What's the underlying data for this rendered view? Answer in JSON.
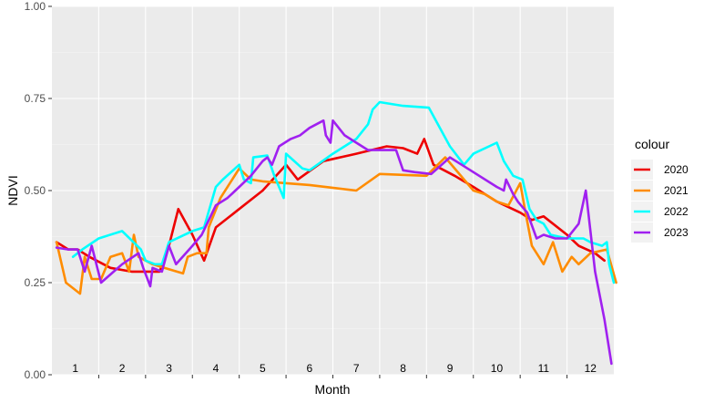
{
  "chart_data": {
    "type": "line",
    "xlabel": "Month",
    "ylabel": "NDVI",
    "ylim": [
      0,
      1
    ],
    "xlim": [
      0.5,
      12.5
    ],
    "y_ticks": [
      "0.00",
      "0.25",
      "0.50",
      "0.75",
      "1.00"
    ],
    "month_labels": [
      "1",
      "2",
      "3",
      "4",
      "5",
      "6",
      "7",
      "8",
      "9",
      "10",
      "11",
      "12"
    ],
    "grid": true,
    "legend": {
      "title": "colour",
      "placement": "right"
    },
    "series": [
      {
        "name": "2020",
        "color": "#ee0000",
        "points": [
          [
            0.6,
            0.36
          ],
          [
            0.85,
            0.34
          ],
          [
            1.05,
            0.34
          ],
          [
            1.3,
            0.32
          ],
          [
            1.75,
            0.29
          ],
          [
            2.2,
            0.28
          ],
          [
            2.6,
            0.28
          ],
          [
            2.8,
            0.28
          ],
          [
            3.0,
            0.35
          ],
          [
            3.2,
            0.45
          ],
          [
            3.5,
            0.38
          ],
          [
            3.75,
            0.31
          ],
          [
            4.0,
            0.4
          ],
          [
            4.5,
            0.45
          ],
          [
            5.0,
            0.5
          ],
          [
            5.5,
            0.57
          ],
          [
            5.75,
            0.53
          ],
          [
            6.3,
            0.58
          ],
          [
            7.0,
            0.6
          ],
          [
            7.65,
            0.62
          ],
          [
            8.0,
            0.615
          ],
          [
            8.3,
            0.6
          ],
          [
            8.45,
            0.64
          ],
          [
            8.65,
            0.57
          ],
          [
            9.1,
            0.54
          ],
          [
            9.5,
            0.51
          ],
          [
            10.0,
            0.47
          ],
          [
            10.5,
            0.44
          ],
          [
            10.75,
            0.42
          ],
          [
            11.0,
            0.43
          ],
          [
            11.5,
            0.38
          ],
          [
            11.75,
            0.35
          ],
          [
            12.1,
            0.33
          ],
          [
            12.3,
            0.31
          ]
        ]
      },
      {
        "name": "2021",
        "color": "#ff8c00",
        "points": [
          [
            0.6,
            0.36
          ],
          [
            0.8,
            0.25
          ],
          [
            1.1,
            0.22
          ],
          [
            1.2,
            0.32
          ],
          [
            1.35,
            0.26
          ],
          [
            1.55,
            0.26
          ],
          [
            1.75,
            0.32
          ],
          [
            2.0,
            0.33
          ],
          [
            2.15,
            0.28
          ],
          [
            2.25,
            0.38
          ],
          [
            2.35,
            0.32
          ],
          [
            2.65,
            0.3
          ],
          [
            2.9,
            0.29
          ],
          [
            3.3,
            0.275
          ],
          [
            3.4,
            0.32
          ],
          [
            3.6,
            0.33
          ],
          [
            3.8,
            0.33
          ],
          [
            3.85,
            0.4
          ],
          [
            4.1,
            0.48
          ],
          [
            4.5,
            0.56
          ],
          [
            4.75,
            0.53
          ],
          [
            5.0,
            0.525
          ],
          [
            6.0,
            0.515
          ],
          [
            7.0,
            0.5
          ],
          [
            7.5,
            0.545
          ],
          [
            8.5,
            0.54
          ],
          [
            8.9,
            0.59
          ],
          [
            9.5,
            0.5
          ],
          [
            9.75,
            0.49
          ],
          [
            10.0,
            0.47
          ],
          [
            10.25,
            0.46
          ],
          [
            10.5,
            0.52
          ],
          [
            10.6,
            0.45
          ],
          [
            10.75,
            0.35
          ],
          [
            11.0,
            0.3
          ],
          [
            11.2,
            0.36
          ],
          [
            11.4,
            0.28
          ],
          [
            11.6,
            0.32
          ],
          [
            11.75,
            0.3
          ],
          [
            12.0,
            0.33
          ],
          [
            12.35,
            0.34
          ],
          [
            12.55,
            0.25
          ]
        ]
      },
      {
        "name": "2022",
        "color": "#00ffff",
        "points": [
          [
            0.95,
            0.32
          ],
          [
            1.15,
            0.34
          ],
          [
            1.5,
            0.37
          ],
          [
            2.0,
            0.39
          ],
          [
            2.4,
            0.34
          ],
          [
            2.5,
            0.31
          ],
          [
            2.7,
            0.3
          ],
          [
            2.85,
            0.3
          ],
          [
            3.0,
            0.36
          ],
          [
            3.5,
            0.39
          ],
          [
            3.75,
            0.4
          ],
          [
            4.0,
            0.51
          ],
          [
            4.15,
            0.53
          ],
          [
            4.5,
            0.57
          ],
          [
            4.6,
            0.53
          ],
          [
            4.75,
            0.52
          ],
          [
            4.8,
            0.59
          ],
          [
            5.1,
            0.595
          ],
          [
            5.25,
            0.54
          ],
          [
            5.45,
            0.48
          ],
          [
            5.5,
            0.6
          ],
          [
            5.85,
            0.56
          ],
          [
            6.0,
            0.555
          ],
          [
            6.5,
            0.6
          ],
          [
            7.0,
            0.64
          ],
          [
            7.25,
            0.68
          ],
          [
            7.35,
            0.72
          ],
          [
            7.5,
            0.74
          ],
          [
            8.0,
            0.73
          ],
          [
            8.55,
            0.725
          ],
          [
            9.0,
            0.62
          ],
          [
            9.3,
            0.57
          ],
          [
            9.5,
            0.6
          ],
          [
            10.0,
            0.63
          ],
          [
            10.15,
            0.58
          ],
          [
            10.35,
            0.54
          ],
          [
            10.55,
            0.53
          ],
          [
            10.7,
            0.45
          ],
          [
            10.85,
            0.42
          ],
          [
            11.0,
            0.41
          ],
          [
            11.15,
            0.38
          ],
          [
            11.5,
            0.37
          ],
          [
            11.85,
            0.37
          ],
          [
            12.0,
            0.36
          ],
          [
            12.25,
            0.35
          ],
          [
            12.35,
            0.36
          ],
          [
            12.4,
            0.3
          ],
          [
            12.5,
            0.25
          ]
        ]
      },
      {
        "name": "2023",
        "color": "#a020f0",
        "points": [
          [
            0.6,
            0.345
          ],
          [
            0.85,
            0.34
          ],
          [
            1.05,
            0.34
          ],
          [
            1.2,
            0.28
          ],
          [
            1.35,
            0.35
          ],
          [
            1.55,
            0.25
          ],
          [
            2.0,
            0.3
          ],
          [
            2.35,
            0.33
          ],
          [
            2.45,
            0.29
          ],
          [
            2.6,
            0.24
          ],
          [
            2.65,
            0.29
          ],
          [
            2.85,
            0.28
          ],
          [
            3.0,
            0.35
          ],
          [
            3.15,
            0.3
          ],
          [
            3.5,
            0.35
          ],
          [
            3.7,
            0.38
          ],
          [
            4.0,
            0.46
          ],
          [
            4.25,
            0.48
          ],
          [
            4.5,
            0.51
          ],
          [
            4.75,
            0.54
          ],
          [
            5.0,
            0.58
          ],
          [
            5.1,
            0.59
          ],
          [
            5.2,
            0.57
          ],
          [
            5.35,
            0.62
          ],
          [
            5.6,
            0.64
          ],
          [
            5.8,
            0.65
          ],
          [
            6.0,
            0.67
          ],
          [
            6.3,
            0.69
          ],
          [
            6.35,
            0.65
          ],
          [
            6.45,
            0.63
          ],
          [
            6.5,
            0.69
          ],
          [
            6.75,
            0.65
          ],
          [
            7.0,
            0.63
          ],
          [
            7.25,
            0.61
          ],
          [
            7.65,
            0.61
          ],
          [
            7.85,
            0.61
          ],
          [
            8.0,
            0.555
          ],
          [
            8.25,
            0.55
          ],
          [
            8.6,
            0.545
          ],
          [
            9.0,
            0.59
          ],
          [
            9.5,
            0.55
          ],
          [
            10.0,
            0.51
          ],
          [
            10.15,
            0.5
          ],
          [
            10.2,
            0.53
          ],
          [
            10.35,
            0.49
          ],
          [
            10.45,
            0.47
          ],
          [
            10.65,
            0.44
          ],
          [
            10.85,
            0.37
          ],
          [
            11.0,
            0.38
          ],
          [
            11.25,
            0.37
          ],
          [
            11.5,
            0.37
          ],
          [
            11.75,
            0.41
          ],
          [
            11.9,
            0.5
          ],
          [
            12.1,
            0.28
          ],
          [
            12.3,
            0.15
          ],
          [
            12.45,
            0.03
          ]
        ]
      }
    ]
  }
}
